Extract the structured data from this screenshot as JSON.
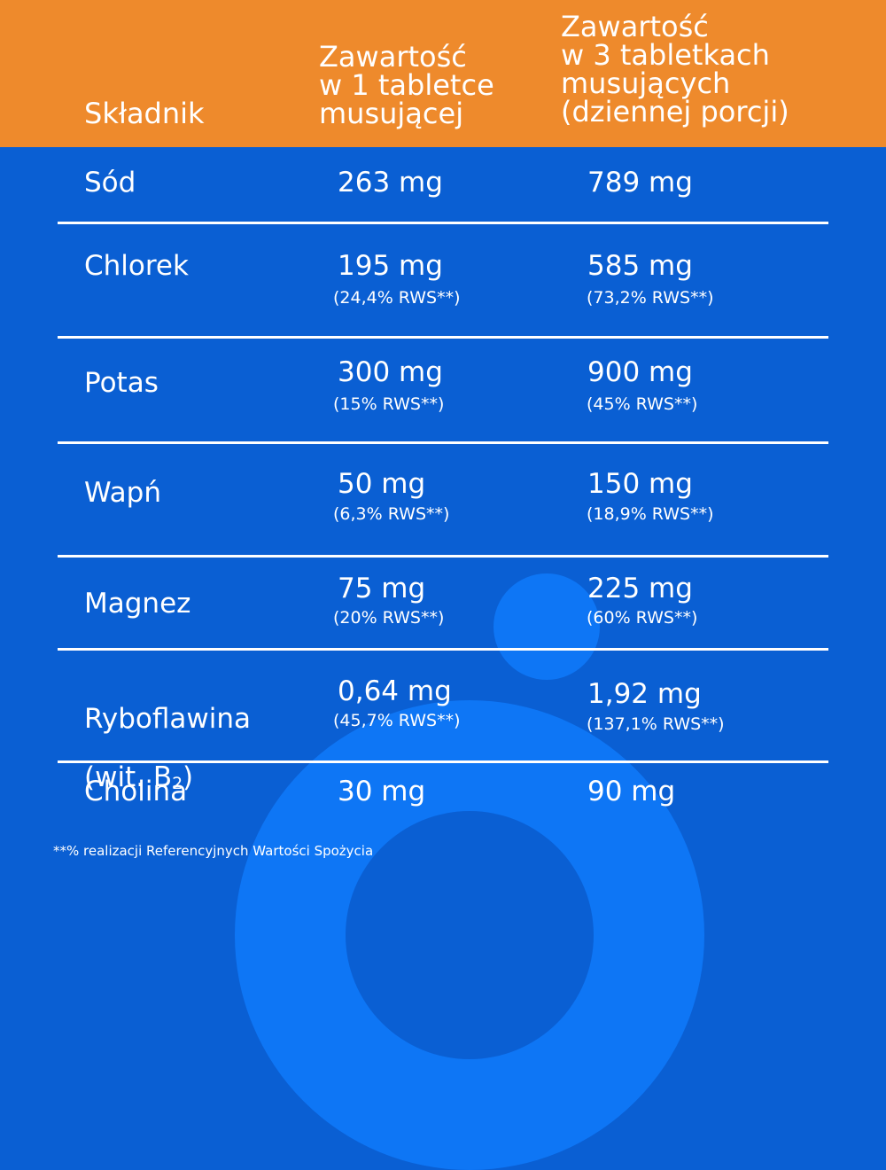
{
  "header": {
    "col1": "Składnik",
    "col2": "Zawartość\nw 1 tabletce\nmusującej",
    "col3": "Zawartość\nw 3 tabletkach\nmusujących\n(dziennej porcji)"
  },
  "colors": {
    "header_bg": "#ee8a2c",
    "body_bg": "#0a5fd3",
    "decor": "#0e76f5",
    "text": "#ffffff"
  },
  "rows": [
    {
      "name": "Sód",
      "per1": "263 mg",
      "per1_rws": "",
      "per3": "789 mg",
      "per3_rws": ""
    },
    {
      "name": "Chlorek",
      "per1": "195 mg",
      "per1_rws": "(24,4% RWS**)",
      "per3": "585 mg",
      "per3_rws": "(73,2% RWS**)"
    },
    {
      "name": "Potas",
      "per1": "300 mg",
      "per1_rws": "(15% RWS**)",
      "per3": "900 mg",
      "per3_rws": "(45% RWS**)"
    },
    {
      "name": "Wapń",
      "per1": "50 mg",
      "per1_rws": "(6,3% RWS**)",
      "per3": "150 mg",
      "per3_rws": "(18,9% RWS**)"
    },
    {
      "name": "Magnez",
      "per1": "75 mg",
      "per1_rws": "(20% RWS**)",
      "per3": "225 mg",
      "per3_rws": "(60% RWS**)"
    },
    {
      "name": "Ryboflawina",
      "name_line2": "(wit. B",
      "name_sub": "2",
      "name_close": ")",
      "per1": "0,64 mg",
      "per1_rws": "(45,7% RWS**)",
      "per3": "1,92 mg",
      "per3_rws": "(137,1% RWS**)"
    },
    {
      "name": "Cholina",
      "per1": "30 mg",
      "per1_rws": "",
      "per3": "90 mg",
      "per3_rws": ""
    }
  ],
  "footnote": "**% realizacji Referencyjnych Wartości Spożycia"
}
